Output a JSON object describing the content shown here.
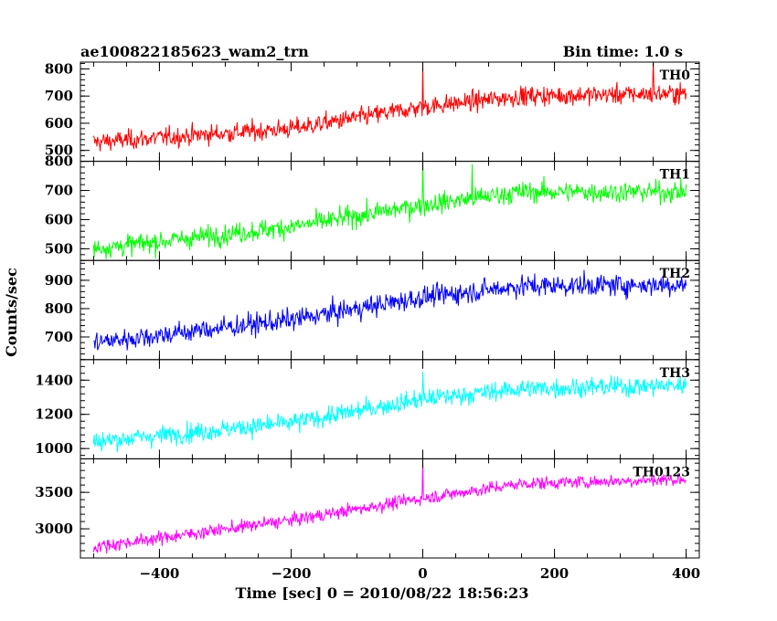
{
  "header": {
    "title": "ae100822185623_wam2_trn",
    "bin_time": "Bin time: 1.0 s"
  },
  "chart_data": {
    "type": "line",
    "xlabel": "Time [sec] 0 = 2010/08/22 18:56:23",
    "ylabel": "Counts/sec",
    "xlim": [
      -520,
      420
    ],
    "x_ticks": [
      -400,
      -200,
      0,
      200,
      400
    ],
    "x_range": [
      -500,
      400
    ],
    "panels": [
      {
        "name": "TH0",
        "color": "#ff0000",
        "ylim": [
          460,
          825
        ],
        "ticks": [
          500,
          600,
          700,
          800
        ],
        "trend": [
          [
            -500,
            530
          ],
          [
            -200,
            580
          ],
          [
            0,
            660
          ],
          [
            150,
            700
          ],
          [
            400,
            710
          ]
        ],
        "noise": 28,
        "spikes": [
          [
            0,
            820
          ],
          [
            350,
            830
          ]
        ]
      },
      {
        "name": "TH1",
        "color": "#00ff00",
        "ylim": [
          460,
          800
        ],
        "ticks": [
          500,
          600,
          700,
          800
        ],
        "trend": [
          [
            -500,
            500
          ],
          [
            -200,
            575
          ],
          [
            0,
            650
          ],
          [
            150,
            695
          ],
          [
            400,
            695
          ]
        ],
        "noise": 28,
        "spikes": [
          [
            0,
            800
          ],
          [
            75,
            790
          ]
        ]
      },
      {
        "name": "TH2",
        "color": "#0000ff",
        "ylim": [
          620,
          970
        ],
        "ticks": [
          700,
          800,
          900
        ],
        "trend": [
          [
            -500,
            680
          ],
          [
            -200,
            760
          ],
          [
            0,
            840
          ],
          [
            150,
            880
          ],
          [
            400,
            885
          ]
        ],
        "noise": 30,
        "spikes": []
      },
      {
        "name": "TH3",
        "color": "#00ffff",
        "ylim": [
          940,
          1520
        ],
        "ticks": [
          1000,
          1200,
          1400
        ],
        "trend": [
          [
            -500,
            1040
          ],
          [
            -200,
            1150
          ],
          [
            0,
            1290
          ],
          [
            150,
            1350
          ],
          [
            400,
            1370
          ]
        ],
        "noise": 45,
        "spikes": [
          [
            0,
            1450
          ]
        ]
      },
      {
        "name": "TH0123",
        "color": "#ff00ff",
        "ylim": [
          2600,
          3960
        ],
        "ticks": [
          3000,
          3500
        ],
        "trend": [
          [
            -500,
            2750
          ],
          [
            -200,
            3120
          ],
          [
            0,
            3420
          ],
          [
            150,
            3620
          ],
          [
            400,
            3680
          ]
        ],
        "noise": 70,
        "spikes": [
          [
            0,
            3950
          ]
        ]
      }
    ]
  }
}
